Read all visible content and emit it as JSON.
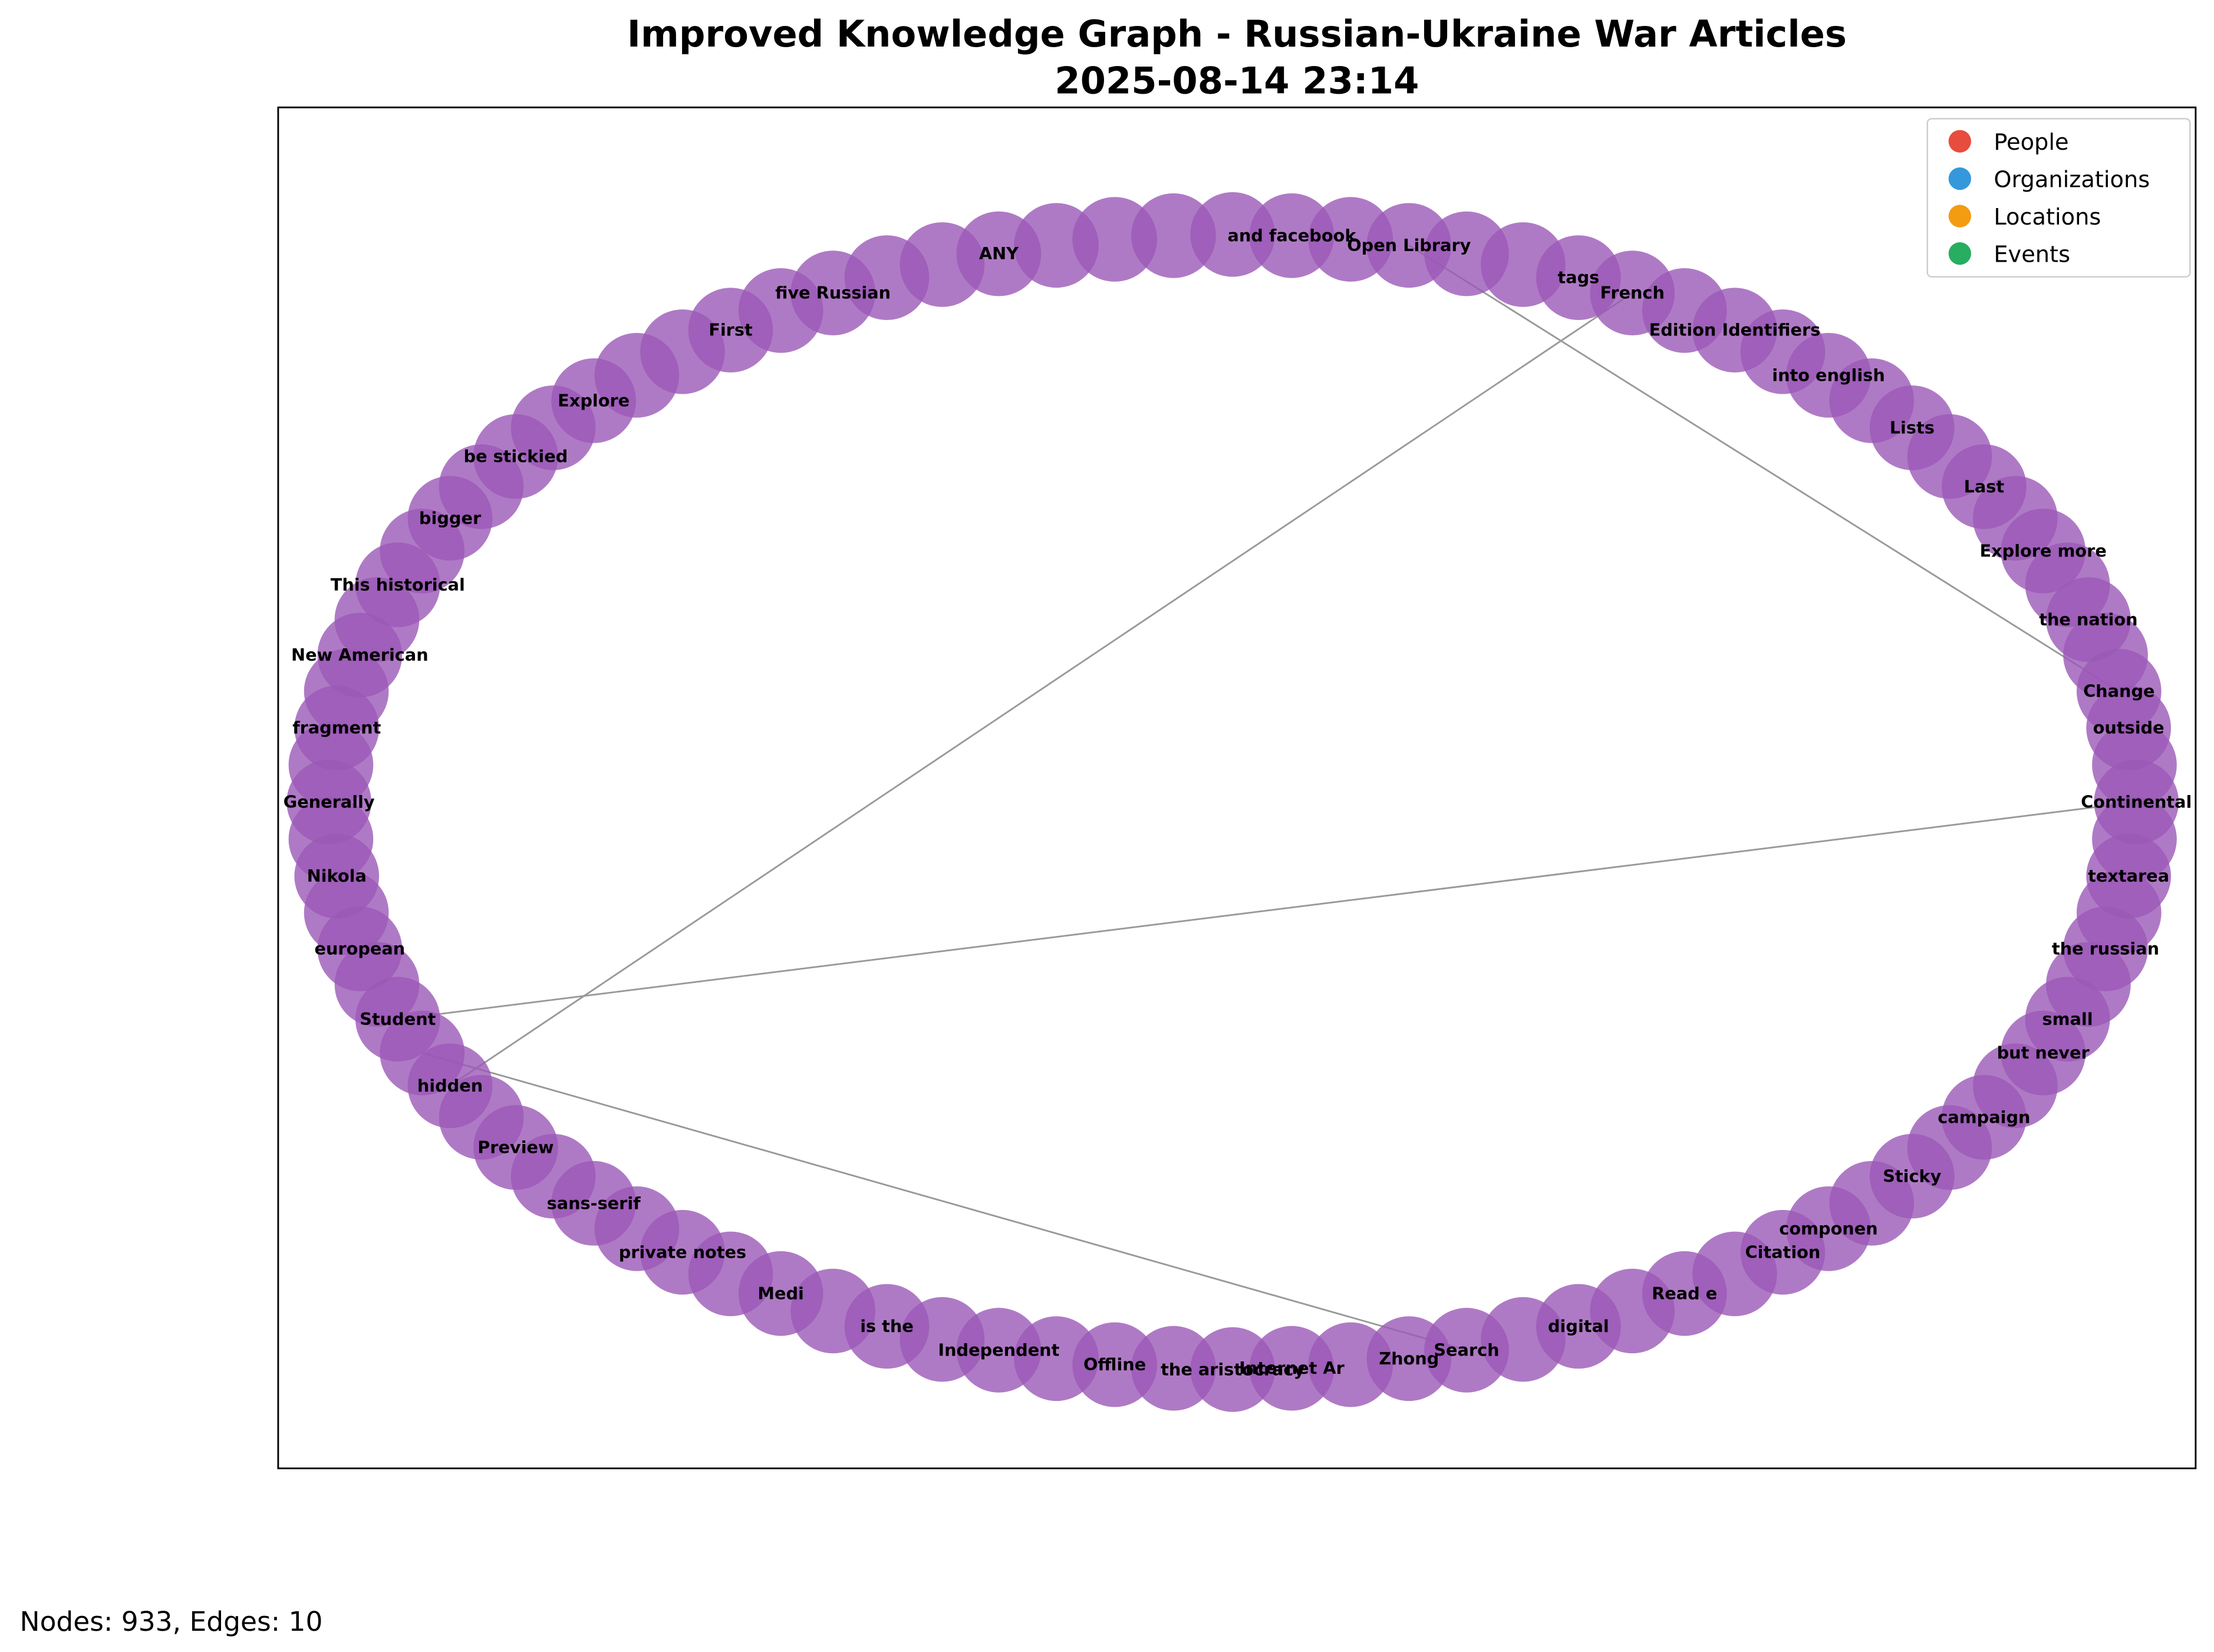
{
  "title": "Improved Knowledge Graph - Russian-Ukraine War Articles",
  "subtitle": "2025-08-14 23:14",
  "legend": [
    {
      "label": "People",
      "color": "#e74c3c"
    },
    {
      "label": "Organizations",
      "color": "#3498db"
    },
    {
      "label": "Locations",
      "color": "#f39c12"
    },
    {
      "label": "Events",
      "color": "#27ae60"
    }
  ],
  "node_color": "#9b59b6",
  "nodes": [
    "Continental",
    null,
    "textarea",
    null,
    "the russian",
    null,
    "small",
    "but never",
    null,
    "campaign",
    null,
    "Sticky",
    null,
    "componen",
    "Citation",
    null,
    "Read e",
    null,
    "digital",
    null,
    "Search",
    "Zhong",
    null,
    "Internet Ar",
    "the aristocracy",
    null,
    "Offline",
    null,
    "Independent",
    null,
    "is the",
    null,
    "Medi",
    null,
    "private notes",
    null,
    "sans-serif",
    null,
    "Preview",
    null,
    "hidden",
    null,
    "Student",
    null,
    "european",
    null,
    "Nikola",
    null,
    "Generally",
    null,
    "fragment",
    null,
    "New American",
    null,
    "This historical",
    null,
    "bigger",
    null,
    "be stickied",
    null,
    "Explore",
    null,
    null,
    "First",
    null,
    "five Russian",
    null,
    null,
    "ANY",
    null,
    null,
    null,
    null,
    "and facebook",
    null,
    "Open Library",
    null,
    null,
    "tags",
    "French",
    null,
    "Edition Identifiers",
    null,
    "into english",
    null,
    "Lists",
    null,
    "Last",
    null,
    "Explore more",
    null,
    "the nation",
    null,
    "Change",
    "outside",
    null
  ],
  "edges": [
    [
      75,
      93
    ],
    [
      79,
      40
    ],
    [
      0,
      42
    ],
    [
      41,
      20
    ]
  ],
  "footer": "Nodes: 933, Edges: 10"
}
